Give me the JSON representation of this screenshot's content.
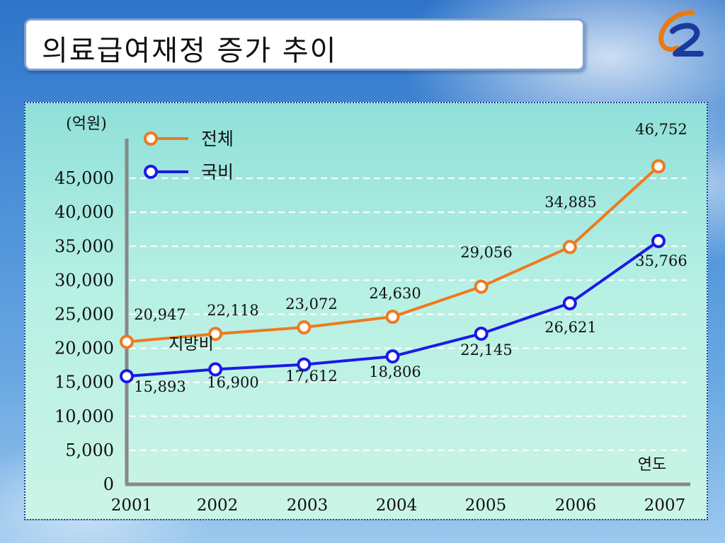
{
  "title": "의료급여재정 증가 추이",
  "logo": {
    "icon": "g2-logo-icon",
    "colors": [
      "#e87a14",
      "#1b3a9e"
    ]
  },
  "colors": {
    "total": "#ee7a1c",
    "national": "#1a1ae6",
    "axis": "#888888",
    "grid": "#ffffff"
  },
  "chart_data": {
    "type": "line",
    "ylabel": "(억원)",
    "xlabel": "연도",
    "x": [
      "2001",
      "2002",
      "2003",
      "2004",
      "2005",
      "2006",
      "2007"
    ],
    "ylim": [
      0,
      50000
    ],
    "yticks": [
      "0",
      "5,000",
      "10,000",
      "15,000",
      "20,000",
      "25,000",
      "30,000",
      "35,000",
      "40,000",
      "45,000"
    ],
    "ytick_values": [
      0,
      5000,
      10000,
      15000,
      20000,
      25000,
      30000,
      35000,
      40000,
      45000
    ],
    "grid": true,
    "legend_position": "top-left",
    "series": [
      {
        "name": "전체",
        "color": "#ee7a1c",
        "values": [
          20947,
          22118,
          23072,
          24630,
          29056,
          34885,
          46752
        ],
        "labels": [
          "20,947",
          "22,118",
          "23,072",
          "24,630",
          "29,056",
          "34,885",
          "46,752"
        ]
      },
      {
        "name": "국비",
        "color": "#1a1ae6",
        "values": [
          15893,
          16900,
          17612,
          18806,
          22145,
          26621,
          35766
        ],
        "labels": [
          "15,893",
          "16,900",
          "17,612",
          "18,806",
          "22,145",
          "26,621",
          "35,766"
        ]
      }
    ],
    "annotations": [
      "지방비"
    ]
  }
}
